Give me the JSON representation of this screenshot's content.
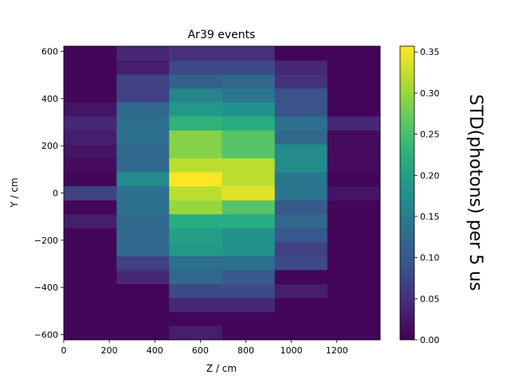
{
  "chart_data": {
    "type": "heatmap",
    "title": "Ar39 events",
    "xlabel": "Z / cm",
    "ylabel": "Y / cm",
    "colorbar_label": "STD(photons) per 5 us",
    "colormap": "viridis",
    "xlim": [
      0,
      1390
    ],
    "ylim": [
      -622,
      622
    ],
    "x_edges": [
      0,
      232,
      463,
      695,
      927,
      1158,
      1390
    ],
    "y_edges": [
      -622,
      -562,
      -503,
      -444,
      -385,
      -325,
      -266,
      -207,
      -148,
      -89,
      -30,
      30,
      89,
      148,
      207,
      266,
      325,
      385,
      444,
      503,
      562,
      622
    ],
    "xticks": [
      0,
      200,
      400,
      600,
      800,
      1000,
      1200
    ],
    "yticks": [
      -600,
      -400,
      -200,
      0,
      200,
      400,
      600
    ],
    "clim": [
      0,
      0.357
    ],
    "colorbar_ticks": [
      "0.00",
      "0.05",
      "0.10",
      "0.15",
      "0.20",
      "0.25",
      "0.30",
      "0.35"
    ],
    "values": [
      [
        0.005,
        0.005,
        0.03,
        0.005,
        0.005,
        0.005
      ],
      [
        0.005,
        0.005,
        0.005,
        0.005,
        0.005,
        0.005
      ],
      [
        0.005,
        0.005,
        0.04,
        0.04,
        0.005,
        0.005
      ],
      [
        0.005,
        0.005,
        0.08,
        0.08,
        0.03,
        0.005
      ],
      [
        0.005,
        0.04,
        0.12,
        0.1,
        0.005,
        0.005
      ],
      [
        0.005,
        0.07,
        0.13,
        0.13,
        0.08,
        0.005
      ],
      [
        0.005,
        0.12,
        0.19,
        0.18,
        0.07,
        0.005
      ],
      [
        0.005,
        0.12,
        0.2,
        0.18,
        0.1,
        0.005
      ],
      [
        0.03,
        0.12,
        0.22,
        0.22,
        0.12,
        0.005
      ],
      [
        0.005,
        0.13,
        0.3,
        0.26,
        0.1,
        0.005
      ],
      [
        0.07,
        0.13,
        0.32,
        0.34,
        0.14,
        0.02
      ],
      [
        0.005,
        0.17,
        0.357,
        0.32,
        0.14,
        0.005
      ],
      [
        0.01,
        0.12,
        0.32,
        0.32,
        0.17,
        0.01
      ],
      [
        0.02,
        0.12,
        0.29,
        0.26,
        0.17,
        0.01
      ],
      [
        0.03,
        0.13,
        0.29,
        0.26,
        0.12,
        0.01
      ],
      [
        0.04,
        0.13,
        0.23,
        0.22,
        0.13,
        0.04
      ],
      [
        0.02,
        0.12,
        0.19,
        0.18,
        0.09,
        0.005
      ],
      [
        0.005,
        0.07,
        0.16,
        0.14,
        0.09,
        0.005
      ],
      [
        0.005,
        0.07,
        0.11,
        0.12,
        0.05,
        0.005
      ],
      [
        0.005,
        0.03,
        0.08,
        0.08,
        0.04,
        0.005
      ],
      [
        0.005,
        0.04,
        0.05,
        0.05,
        0.005,
        0.005
      ]
    ]
  }
}
